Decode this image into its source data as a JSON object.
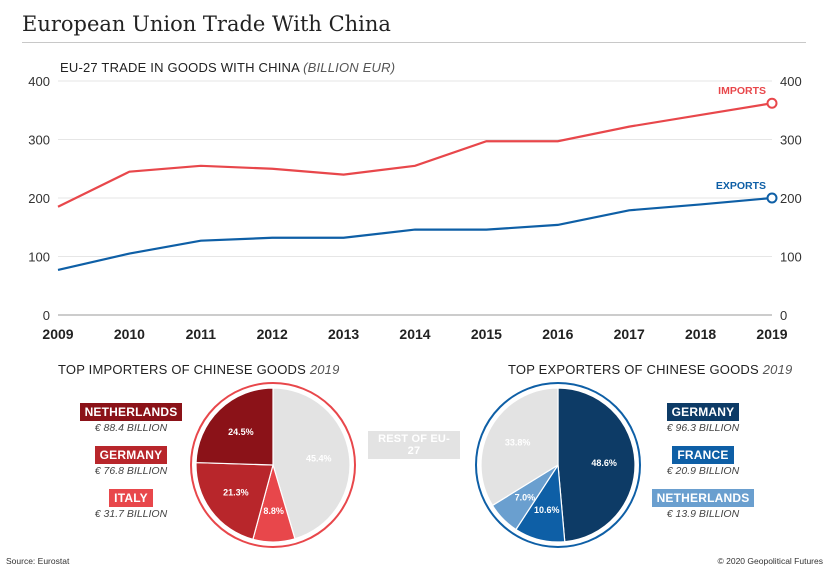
{
  "title": "European Union Trade With China",
  "line_chart": {
    "heading": "EU-27 TRADE IN GOODS WITH CHINA",
    "unit": "(BILLION EUR)"
  },
  "importers": {
    "title": "TOP IMPORTERS OF CHINESE GOODS",
    "year": "2019",
    "legend": [
      {
        "label": "NETHERLANDS",
        "amount": "€ 88.4 BILLION",
        "color": "#8b1218"
      },
      {
        "label": "GERMANY",
        "amount": "€ 76.8 BILLION",
        "color": "#b8262b"
      },
      {
        "label": "ITALY",
        "amount": "€ 31.7 BILLION",
        "color": "#e8474b"
      }
    ]
  },
  "exporters": {
    "title": "TOP EXPORTERS OF CHINESE GOODS",
    "year": "2019",
    "legend": [
      {
        "label": "GERMANY",
        "amount": "€ 96.3 BILLION",
        "color": "#0d3b66"
      },
      {
        "label": "FRANCE",
        "amount": "€ 20.9 BILLION",
        "color": "#0e5fa6"
      },
      {
        "label": "NETHERLANDS",
        "amount": "€ 13.9 BILLION",
        "color": "#6a9fcf"
      }
    ]
  },
  "rest_label": "REST OF EU-27",
  "footer": {
    "source": "Source: Eurostat",
    "copyright": "© 2020 Geopolitical Futures"
  },
  "chart_data": [
    {
      "type": "line",
      "title": "EU-27 TRADE IN GOODS WITH CHINA (BILLION EUR)",
      "x": [
        "2009",
        "2010",
        "2011",
        "2012",
        "2013",
        "2014",
        "2015",
        "2016",
        "2017",
        "2018",
        "2019"
      ],
      "ylim": [
        0,
        400
      ],
      "yticks": [
        "0",
        "100",
        "200",
        "300",
        "400"
      ],
      "grid": true,
      "series": [
        {
          "name": "IMPORTS",
          "color": "#e8474b",
          "values": [
            185,
            245,
            255,
            250,
            240,
            255,
            297,
            297,
            322,
            342,
            362
          ]
        },
        {
          "name": "EXPORTS",
          "color": "#0e5fa6",
          "values": [
            77,
            105,
            127,
            132,
            132,
            146,
            146,
            154,
            179,
            189,
            200
          ]
        }
      ]
    },
    {
      "type": "pie",
      "title": "TOP IMPORTERS OF CHINESE GOODS 2019",
      "slices": [
        {
          "label": "REST OF EU-27",
          "value": 45.4,
          "text": "45.4%",
          "color": "#e3e3e3",
          "text_color": "#ffffff"
        },
        {
          "label": "ITALY",
          "value": 8.8,
          "text": "8.8%",
          "color": "#e8474b",
          "text_color": "#ffffff"
        },
        {
          "label": "GERMANY",
          "value": 21.3,
          "text": "21.3%",
          "color": "#b8262b",
          "text_color": "#ffffff"
        },
        {
          "label": "NETHERLANDS",
          "value": 24.5,
          "text": "24.5%",
          "color": "#8b1218",
          "text_color": "#ffffff"
        }
      ],
      "ring_color": "#e8474b"
    },
    {
      "type": "pie",
      "title": "TOP EXPORTERS OF CHINESE GOODS 2019",
      "slices": [
        {
          "label": "GERMANY",
          "value": 48.6,
          "text": "48.6%",
          "color": "#0d3b66",
          "text_color": "#ffffff"
        },
        {
          "label": "FRANCE",
          "value": 10.6,
          "text": "10.6%",
          "color": "#0e5fa6",
          "text_color": "#ffffff"
        },
        {
          "label": "NETHERLANDS",
          "value": 7.0,
          "text": "7.0%",
          "color": "#6a9fcf",
          "text_color": "#ffffff"
        },
        {
          "label": "REST OF EU-27",
          "value": 33.8,
          "text": "33.8%",
          "color": "#e3e3e3",
          "text_color": "#ffffff"
        }
      ],
      "ring_color": "#0e5fa6"
    }
  ]
}
